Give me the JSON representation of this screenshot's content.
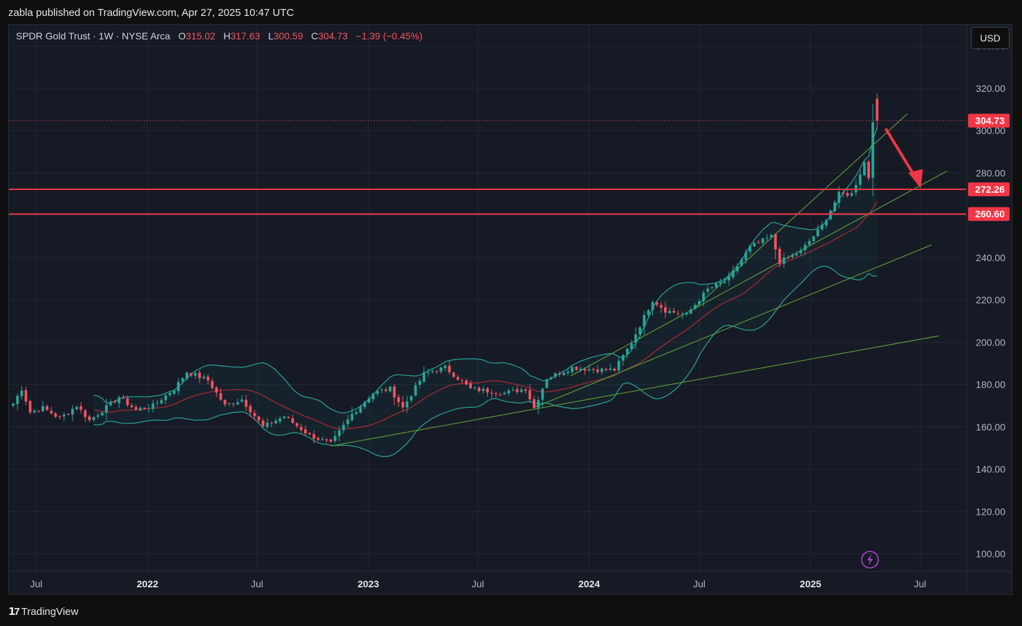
{
  "header": {
    "published": "zabla published on TradingView.com, Apr 27, 2025 10:47 UTC"
  },
  "legend": {
    "symbol": "SPDR Gold Trust · 1W · NYSE Arca",
    "o_label": "O",
    "o": "315.02",
    "h_label": "H",
    "h": "317.63",
    "l_label": "L",
    "l": "300.59",
    "c_label": "C",
    "c": "304.73",
    "change": "−1.39 (−0.45%)"
  },
  "currency_button": "USD",
  "footer": {
    "brand": "TradingView"
  },
  "colors": {
    "up": "#26a69a",
    "down": "#f7525f",
    "bollinger": "#26a69a",
    "basis": "#b22833",
    "trendline": "#5a9a3a",
    "level": "#f23645",
    "arrow": "#f23645"
  },
  "chart_data": {
    "type": "candlestick",
    "timeframe": "1W",
    "ylim": [
      92,
      350
    ],
    "y_ticks": [
      "340.00",
      "320.00",
      "300.00",
      "280.00",
      "260.00",
      "240.00",
      "220.00",
      "200.00",
      "180.00",
      "160.00",
      "140.00",
      "120.00",
      "100.00"
    ],
    "x_ticks": [
      "Jul",
      "2022",
      "Jul",
      "2023",
      "Jul",
      "2024",
      "Jul",
      "2025",
      "Jul"
    ],
    "last_price": "304.73",
    "horizontal_levels": [
      "272.26",
      "260.60"
    ],
    "close_anchors": [
      [
        "2021-05-24",
        171
      ],
      [
        "2021-06-07",
        178
      ],
      [
        "2021-06-21",
        167
      ],
      [
        "2021-07-12",
        169
      ],
      [
        "2021-08-09",
        164
      ],
      [
        "2021-09-06",
        170
      ],
      [
        "2021-09-27",
        163
      ],
      [
        "2021-11-15",
        174
      ],
      [
        "2021-12-13",
        168
      ],
      [
        "2022-01-10",
        170
      ],
      [
        "2022-02-14",
        178
      ],
      [
        "2022-03-07",
        186
      ],
      [
        "2022-04-11",
        182
      ],
      [
        "2022-05-09",
        170
      ],
      [
        "2022-06-06",
        173
      ],
      [
        "2022-07-11",
        160
      ],
      [
        "2022-08-15",
        165
      ],
      [
        "2022-09-26",
        156
      ],
      [
        "2022-10-31",
        152
      ],
      [
        "2022-12-05",
        166
      ],
      [
        "2023-01-09",
        176
      ],
      [
        "2023-02-06",
        178
      ],
      [
        "2023-02-27",
        169
      ],
      [
        "2023-04-03",
        185
      ],
      [
        "2023-05-08",
        188
      ],
      [
        "2023-06-19",
        178
      ],
      [
        "2023-08-14",
        176
      ],
      [
        "2023-09-18",
        178
      ],
      [
        "2023-10-02",
        169
      ],
      [
        "2023-10-23",
        183
      ],
      [
        "2023-12-04",
        188
      ],
      [
        "2024-01-15",
        187
      ],
      [
        "2024-02-12",
        187
      ],
      [
        "2024-03-11",
        200
      ],
      [
        "2024-04-15",
        220
      ],
      [
        "2024-05-06",
        215
      ],
      [
        "2024-06-10",
        213
      ],
      [
        "2024-07-15",
        225
      ],
      [
        "2024-08-19",
        230
      ],
      [
        "2024-09-23",
        245
      ],
      [
        "2024-10-28",
        250
      ],
      [
        "2024-11-11",
        238
      ],
      [
        "2024-12-16",
        243
      ],
      [
        "2025-01-20",
        255
      ],
      [
        "2025-02-17",
        270
      ],
      [
        "2025-03-10",
        270
      ],
      [
        "2025-03-31",
        285
      ],
      [
        "2025-04-07",
        278
      ],
      [
        "2025-04-14",
        305
      ],
      [
        "2025-04-21",
        304.73
      ]
    ],
    "last_candle": {
      "date": "2025-04-21",
      "open": 315.02,
      "high": 317.63,
      "low": 300.59,
      "close": 304.73
    },
    "bollinger_window": 20,
    "bollinger_k": 2
  }
}
